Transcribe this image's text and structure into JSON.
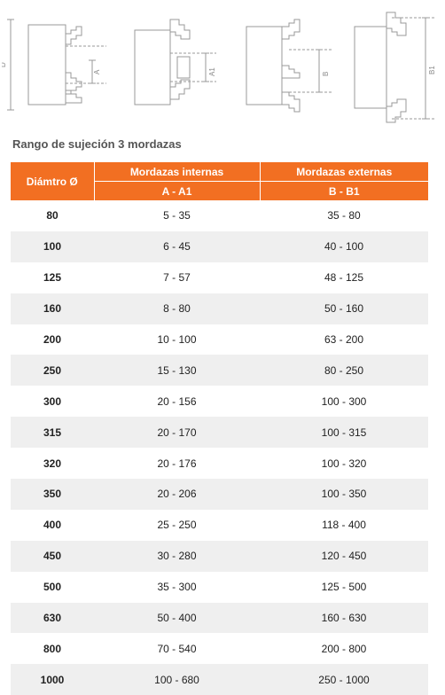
{
  "diagrams": [
    {
      "dim_outer": "D",
      "dim_inner": "A"
    },
    {
      "dim_inner": "A1"
    },
    {
      "dim_inner": "B"
    },
    {
      "dim_inner": "B1"
    }
  ],
  "title": "Rango de sujeción 3 mordazas",
  "table": {
    "headers": {
      "diameter": "Diámtro Ø",
      "internal": "Mordazas internas",
      "internal_range": "A - A1",
      "external": "Mordazas externas",
      "external_range": "B - B1"
    },
    "rows": [
      {
        "d": "80",
        "a": "5 - 35",
        "b": "35 - 80"
      },
      {
        "d": "100",
        "a": "6 - 45",
        "b": "40 - 100"
      },
      {
        "d": "125",
        "a": "7 - 57",
        "b": "48 - 125"
      },
      {
        "d": "160",
        "a": "8 - 80",
        "b": "50 - 160"
      },
      {
        "d": "200",
        "a": "10 - 100",
        "b": "63 - 200"
      },
      {
        "d": "250",
        "a": "15 - 130",
        "b": "80 - 250"
      },
      {
        "d": "300",
        "a": "20 - 156",
        "b": "100 - 300"
      },
      {
        "d": "315",
        "a": "20 - 170",
        "b": "100 - 315"
      },
      {
        "d": "320",
        "a": "20 - 176",
        "b": "100 - 320"
      },
      {
        "d": "350",
        "a": "20 - 206",
        "b": "100 - 350"
      },
      {
        "d": "400",
        "a": "25 - 250",
        "b": "118 - 400"
      },
      {
        "d": "450",
        "a": "30 - 280",
        "b": "120 - 450"
      },
      {
        "d": "500",
        "a": "35 - 300",
        "b": "125 - 500"
      },
      {
        "d": "630",
        "a": "50 - 400",
        "b": "160 - 630"
      },
      {
        "d": "800",
        "a": "70 - 540",
        "b": "200 - 800"
      },
      {
        "d": "1000",
        "a": "100 - 680",
        "b": "250 - 1000"
      }
    ]
  },
  "colors": {
    "header": "#f26f22",
    "stripe": "#efefef"
  }
}
